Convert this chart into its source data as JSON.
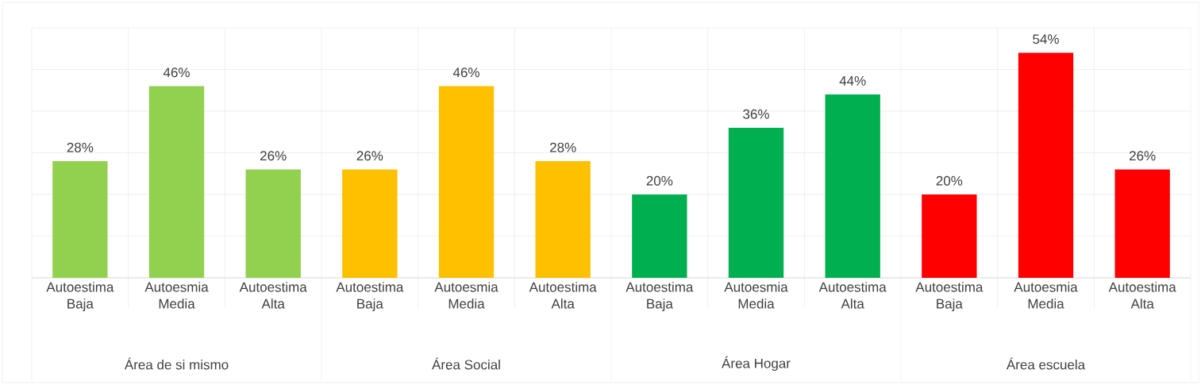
{
  "chart_data": {
    "type": "bar",
    "categories": [
      "Autoestima Baja",
      "Autoesmia Media",
      "Autoestima Alta",
      "Autoestima Baja",
      "Autoesmia Media",
      "Autoestima Alta",
      "Autoestima Baja",
      "Autoesmia Media",
      "Autoestima Alta",
      "Autoestima Baja",
      "Autoesmia Media",
      "Autoestima Alta"
    ],
    "values": [
      28,
      46,
      26,
      26,
      46,
      28,
      20,
      36,
      44,
      20,
      54,
      26
    ],
    "value_labels": [
      "28%",
      "46%",
      "26%",
      "26%",
      "46%",
      "28%",
      "20%",
      "36%",
      "44%",
      "20%",
      "54%",
      "26%"
    ],
    "colors": [
      "#92d050",
      "#92d050",
      "#92d050",
      "#ffc000",
      "#ffc000",
      "#ffc000",
      "#00b050",
      "#00b050",
      "#00b050",
      "#ff0000",
      "#ff0000",
      "#ff0000"
    ],
    "annotations": [
      "Área de si mismo",
      "Área Social",
      "Área Hogar",
      "Área escuela"
    ],
    "ylim": [
      0,
      60
    ],
    "yticks": [
      {
        "value": 0,
        "label": null
      },
      {
        "value": 10,
        "label": null
      },
      {
        "value": 20,
        "label": null
      },
      {
        "value": 30,
        "label": null
      },
      {
        "value": 40,
        "label": null
      },
      {
        "value": 50,
        "label": null
      },
      {
        "value": 60,
        "label": null
      }
    ],
    "grid": "y",
    "tick_labels": "x"
  }
}
